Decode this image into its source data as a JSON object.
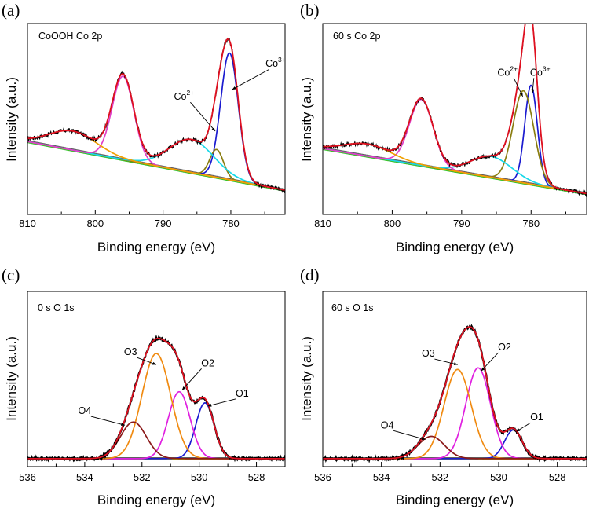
{
  "figure": {
    "colors": {
      "raw": "#000000",
      "envelope": "#e01020",
      "background_yellow": "#e8d200",
      "background_blue": "#1818d0",
      "background_green": "#20c020",
      "background_gray": "#606060"
    }
  },
  "chart_data": [
    {
      "type": "line",
      "panel_letter": "(a)",
      "title": "CoOOH Co 2p",
      "xlabel": "Binding energy (eV)",
      "ylabel": "Intensity (a.u.)",
      "xlim": [
        810,
        772
      ],
      "x_ticks": [
        810,
        800,
        790,
        780
      ],
      "ylim": [
        0,
        1.1
      ],
      "y_ticklabels_shown": false,
      "grid": false,
      "background": {
        "x": [
          810,
          772
        ],
        "y": [
          0.42,
          0.14
        ]
      },
      "raw_noise": 0.012,
      "peaks": [
        {
          "name": "Co3+ main",
          "center": 780.2,
          "height": 0.73,
          "width": 1.3,
          "color": "#1b1bd0"
        },
        {
          "name": "Co2+ main",
          "center": 782.1,
          "height": 0.16,
          "width": 1.0,
          "color": "#8a7d10"
        },
        {
          "name": "Co 2p3/2 satellite",
          "center": 785.8,
          "height": 0.19,
          "width": 3.3,
          "color": "#18d8e8"
        },
        {
          "name": "Co 2p1/2",
          "center": 795.9,
          "height": 0.48,
          "width": 1.6,
          "color": "#e040c8"
        },
        {
          "name": "Co 2p1/2 satellite",
          "center": 803.3,
          "height": 0.11,
          "width": 3.5,
          "color": "#f0a000"
        }
      ],
      "labels": [
        {
          "text": "Co",
          "sup": "3+",
          "x": 773.4,
          "y": 0.85,
          "arrow_to": [
            779.8,
            0.72
          ]
        },
        {
          "text": "Co",
          "sup": "2+",
          "x": 786.9,
          "y": 0.66,
          "arrow_to": [
            782.3,
            0.48
          ]
        }
      ]
    },
    {
      "type": "line",
      "panel_letter": "(b)",
      "title": "60 s  Co 2p",
      "xlabel": "Binding energy (eV)",
      "ylabel": "Intensity (a.u.)",
      "xlim": [
        810,
        772
      ],
      "x_ticks": [
        810,
        800,
        790,
        780
      ],
      "ylim": [
        0,
        1.1
      ],
      "y_ticklabels_shown": false,
      "grid": false,
      "background": {
        "x": [
          810,
          772
        ],
        "y": [
          0.38,
          0.12
        ]
      },
      "raw_noise": 0.012,
      "peaks": [
        {
          "name": "Co3+ main",
          "center": 780.0,
          "height": 0.57,
          "width": 0.9,
          "color": "#1b1bd0"
        },
        {
          "name": "Co2+ main",
          "center": 781.1,
          "height": 0.53,
          "width": 1.5,
          "color": "#8a7d10"
        },
        {
          "name": "Co 2p3/2 satellite",
          "center": 785.7,
          "height": 0.12,
          "width": 3.0,
          "color": "#18d8e8"
        },
        {
          "name": "Co 2p1/2",
          "center": 795.8,
          "height": 0.38,
          "width": 1.7,
          "color": "#e040c8"
        },
        {
          "name": "Co 2p1/2 satellite",
          "center": 803.5,
          "height": 0.07,
          "width": 3.4,
          "color": "#f0a000"
        }
      ],
      "labels": [
        {
          "text": "Co",
          "sup": "2+",
          "x": 783.4,
          "y": 0.8,
          "arrow_to": [
            781.2,
            0.68
          ]
        },
        {
          "text": "Co",
          "sup": "3+",
          "x": 778.7,
          "y": 0.8,
          "arrow_to": [
            779.8,
            0.7
          ]
        }
      ]
    },
    {
      "type": "line",
      "panel_letter": "(c)",
      "title": "0 s  O 1s",
      "xlabel": "Binding energy (eV)",
      "ylabel": "Intensity (a.u.)",
      "xlim": [
        536,
        527
      ],
      "x_ticks": [
        536,
        534,
        532,
        530,
        528
      ],
      "ylim": [
        0,
        1.1
      ],
      "y_ticklabels_shown": false,
      "grid": false,
      "background": {
        "x": [
          536,
          527
        ],
        "y": [
          0.05,
          0.05
        ]
      },
      "raw_noise": 0.008,
      "peaks": [
        {
          "name": "O1",
          "center": 529.8,
          "height": 0.35,
          "width": 0.32,
          "color": "#1b1bd0"
        },
        {
          "name": "O2",
          "center": 530.7,
          "height": 0.42,
          "width": 0.38,
          "color": "#e020e0"
        },
        {
          "name": "O3",
          "center": 531.5,
          "height": 0.66,
          "width": 0.5,
          "color": "#f08a10"
        },
        {
          "name": "O4",
          "center": 532.3,
          "height": 0.23,
          "width": 0.45,
          "color": "#8b1a1a"
        }
      ],
      "labels": [
        {
          "text": "O1",
          "x": 528.5,
          "y": 0.44,
          "arrow_to": [
            529.7,
            0.38
          ]
        },
        {
          "text": "O2",
          "x": 529.7,
          "y": 0.63,
          "arrow_to": [
            530.6,
            0.48
          ]
        },
        {
          "text": "O3",
          "x": 532.4,
          "y": 0.7,
          "arrow_to": [
            531.5,
            0.64
          ]
        },
        {
          "text": "O4",
          "x": 534.0,
          "y": 0.33,
          "arrow_to": [
            532.6,
            0.26
          ]
        }
      ]
    },
    {
      "type": "line",
      "panel_letter": "(d)",
      "title": "60 s  O 1s",
      "xlabel": "Binding energy (eV)",
      "ylabel": "Intensity (a.u.)",
      "xlim": [
        536,
        527
      ],
      "x_ticks": [
        536,
        534,
        532,
        530,
        528
      ],
      "ylim": [
        0,
        1.1
      ],
      "y_ticklabels_shown": false,
      "grid": false,
      "background": {
        "x": [
          536,
          527
        ],
        "y": [
          0.05,
          0.05
        ]
      },
      "raw_noise": 0.008,
      "peaks": [
        {
          "name": "O1",
          "center": 529.5,
          "height": 0.18,
          "width": 0.3,
          "color": "#1b1bd0"
        },
        {
          "name": "O2",
          "center": 530.7,
          "height": 0.57,
          "width": 0.42,
          "color": "#e020e0"
        },
        {
          "name": "O3",
          "center": 531.4,
          "height": 0.56,
          "width": 0.46,
          "color": "#f08a10"
        },
        {
          "name": "O4",
          "center": 532.3,
          "height": 0.14,
          "width": 0.45,
          "color": "#8b1a1a"
        }
      ],
      "labels": [
        {
          "text": "O1",
          "x": 528.7,
          "y": 0.29,
          "arrow_to": [
            529.4,
            0.22
          ]
        },
        {
          "text": "O2",
          "x": 529.8,
          "y": 0.73,
          "arrow_to": [
            530.6,
            0.6
          ]
        },
        {
          "text": "O3",
          "x": 532.4,
          "y": 0.69,
          "arrow_to": [
            531.4,
            0.64
          ]
        },
        {
          "text": "O4",
          "x": 533.8,
          "y": 0.24,
          "arrow_to": [
            532.5,
            0.17
          ]
        }
      ]
    }
  ]
}
